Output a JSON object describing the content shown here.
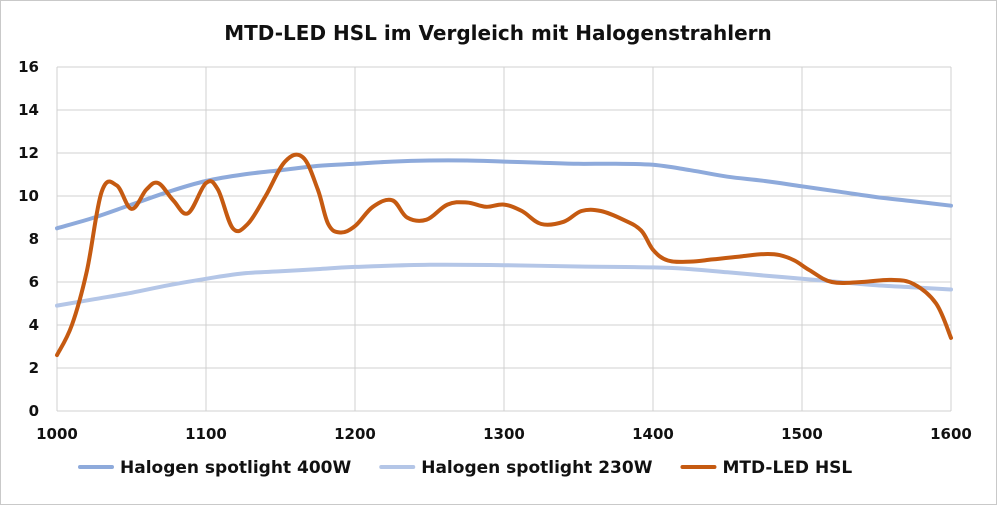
{
  "chart_data": {
    "type": "line",
    "title": "MTD-LED HSL im Vergleich mit Halogenstrahlern",
    "xlabel": "",
    "ylabel": "",
    "xlim": [
      1000,
      1600
    ],
    "ylim": [
      0,
      16
    ],
    "xticks": [
      1000,
      1100,
      1200,
      1300,
      1400,
      1500,
      1600
    ],
    "yticks": [
      0,
      2,
      4,
      6,
      8,
      10,
      12,
      14,
      16
    ],
    "grid": true,
    "legend_position": "bottom",
    "series": [
      {
        "name": "Halogen spotlight 400W",
        "color": "#8eaadb",
        "x": [
          1000,
          1025,
          1050,
          1075,
          1100,
          1125,
          1150,
          1175,
          1200,
          1225,
          1250,
          1275,
          1300,
          1325,
          1350,
          1375,
          1400,
          1425,
          1450,
          1475,
          1500,
          1525,
          1550,
          1575,
          1600
        ],
        "y": [
          8.5,
          9.0,
          9.6,
          10.2,
          10.7,
          11.0,
          11.2,
          11.4,
          11.5,
          11.6,
          11.65,
          11.65,
          11.6,
          11.55,
          11.5,
          11.5,
          11.45,
          11.2,
          10.9,
          10.7,
          10.45,
          10.2,
          9.95,
          9.75,
          9.55
        ]
      },
      {
        "name": "Halogen spotlight 230W",
        "color": "#b4c6e7",
        "x": [
          1000,
          1025,
          1050,
          1075,
          1100,
          1125,
          1150,
          1175,
          1200,
          1250,
          1300,
          1350,
          1400,
          1425,
          1450,
          1475,
          1500,
          1525,
          1550,
          1575,
          1600
        ],
        "y": [
          4.9,
          5.2,
          5.5,
          5.85,
          6.15,
          6.4,
          6.5,
          6.6,
          6.7,
          6.8,
          6.78,
          6.72,
          6.68,
          6.6,
          6.45,
          6.3,
          6.15,
          6.0,
          5.85,
          5.75,
          5.65
        ]
      },
      {
        "name": "MTD-LED HSL",
        "color": "#c55a11",
        "x": [
          1000,
          1010,
          1020,
          1030,
          1040,
          1050,
          1060,
          1068,
          1078,
          1088,
          1100,
          1108,
          1118,
          1128,
          1140,
          1153,
          1165,
          1175,
          1182,
          1190,
          1200,
          1212,
          1225,
          1235,
          1248,
          1262,
          1275,
          1288,
          1300,
          1312,
          1325,
          1340,
          1352,
          1365,
          1380,
          1392,
          1400,
          1410,
          1425,
          1440,
          1460,
          1475,
          1485,
          1495,
          1505,
          1520,
          1540,
          1560,
          1575,
          1590,
          1600
        ],
        "y": [
          2.6,
          4.0,
          6.5,
          10.2,
          10.5,
          9.4,
          10.3,
          10.6,
          9.8,
          9.2,
          10.6,
          10.3,
          8.5,
          8.7,
          10.0,
          11.6,
          11.8,
          10.3,
          8.7,
          8.3,
          8.6,
          9.5,
          9.8,
          9.0,
          8.9,
          9.6,
          9.7,
          9.5,
          9.6,
          9.3,
          8.7,
          8.8,
          9.3,
          9.3,
          8.9,
          8.4,
          7.5,
          7.0,
          6.95,
          7.05,
          7.2,
          7.3,
          7.25,
          7.0,
          6.55,
          6.0,
          6.0,
          6.1,
          5.9,
          5.0,
          3.4
        ]
      }
    ]
  }
}
